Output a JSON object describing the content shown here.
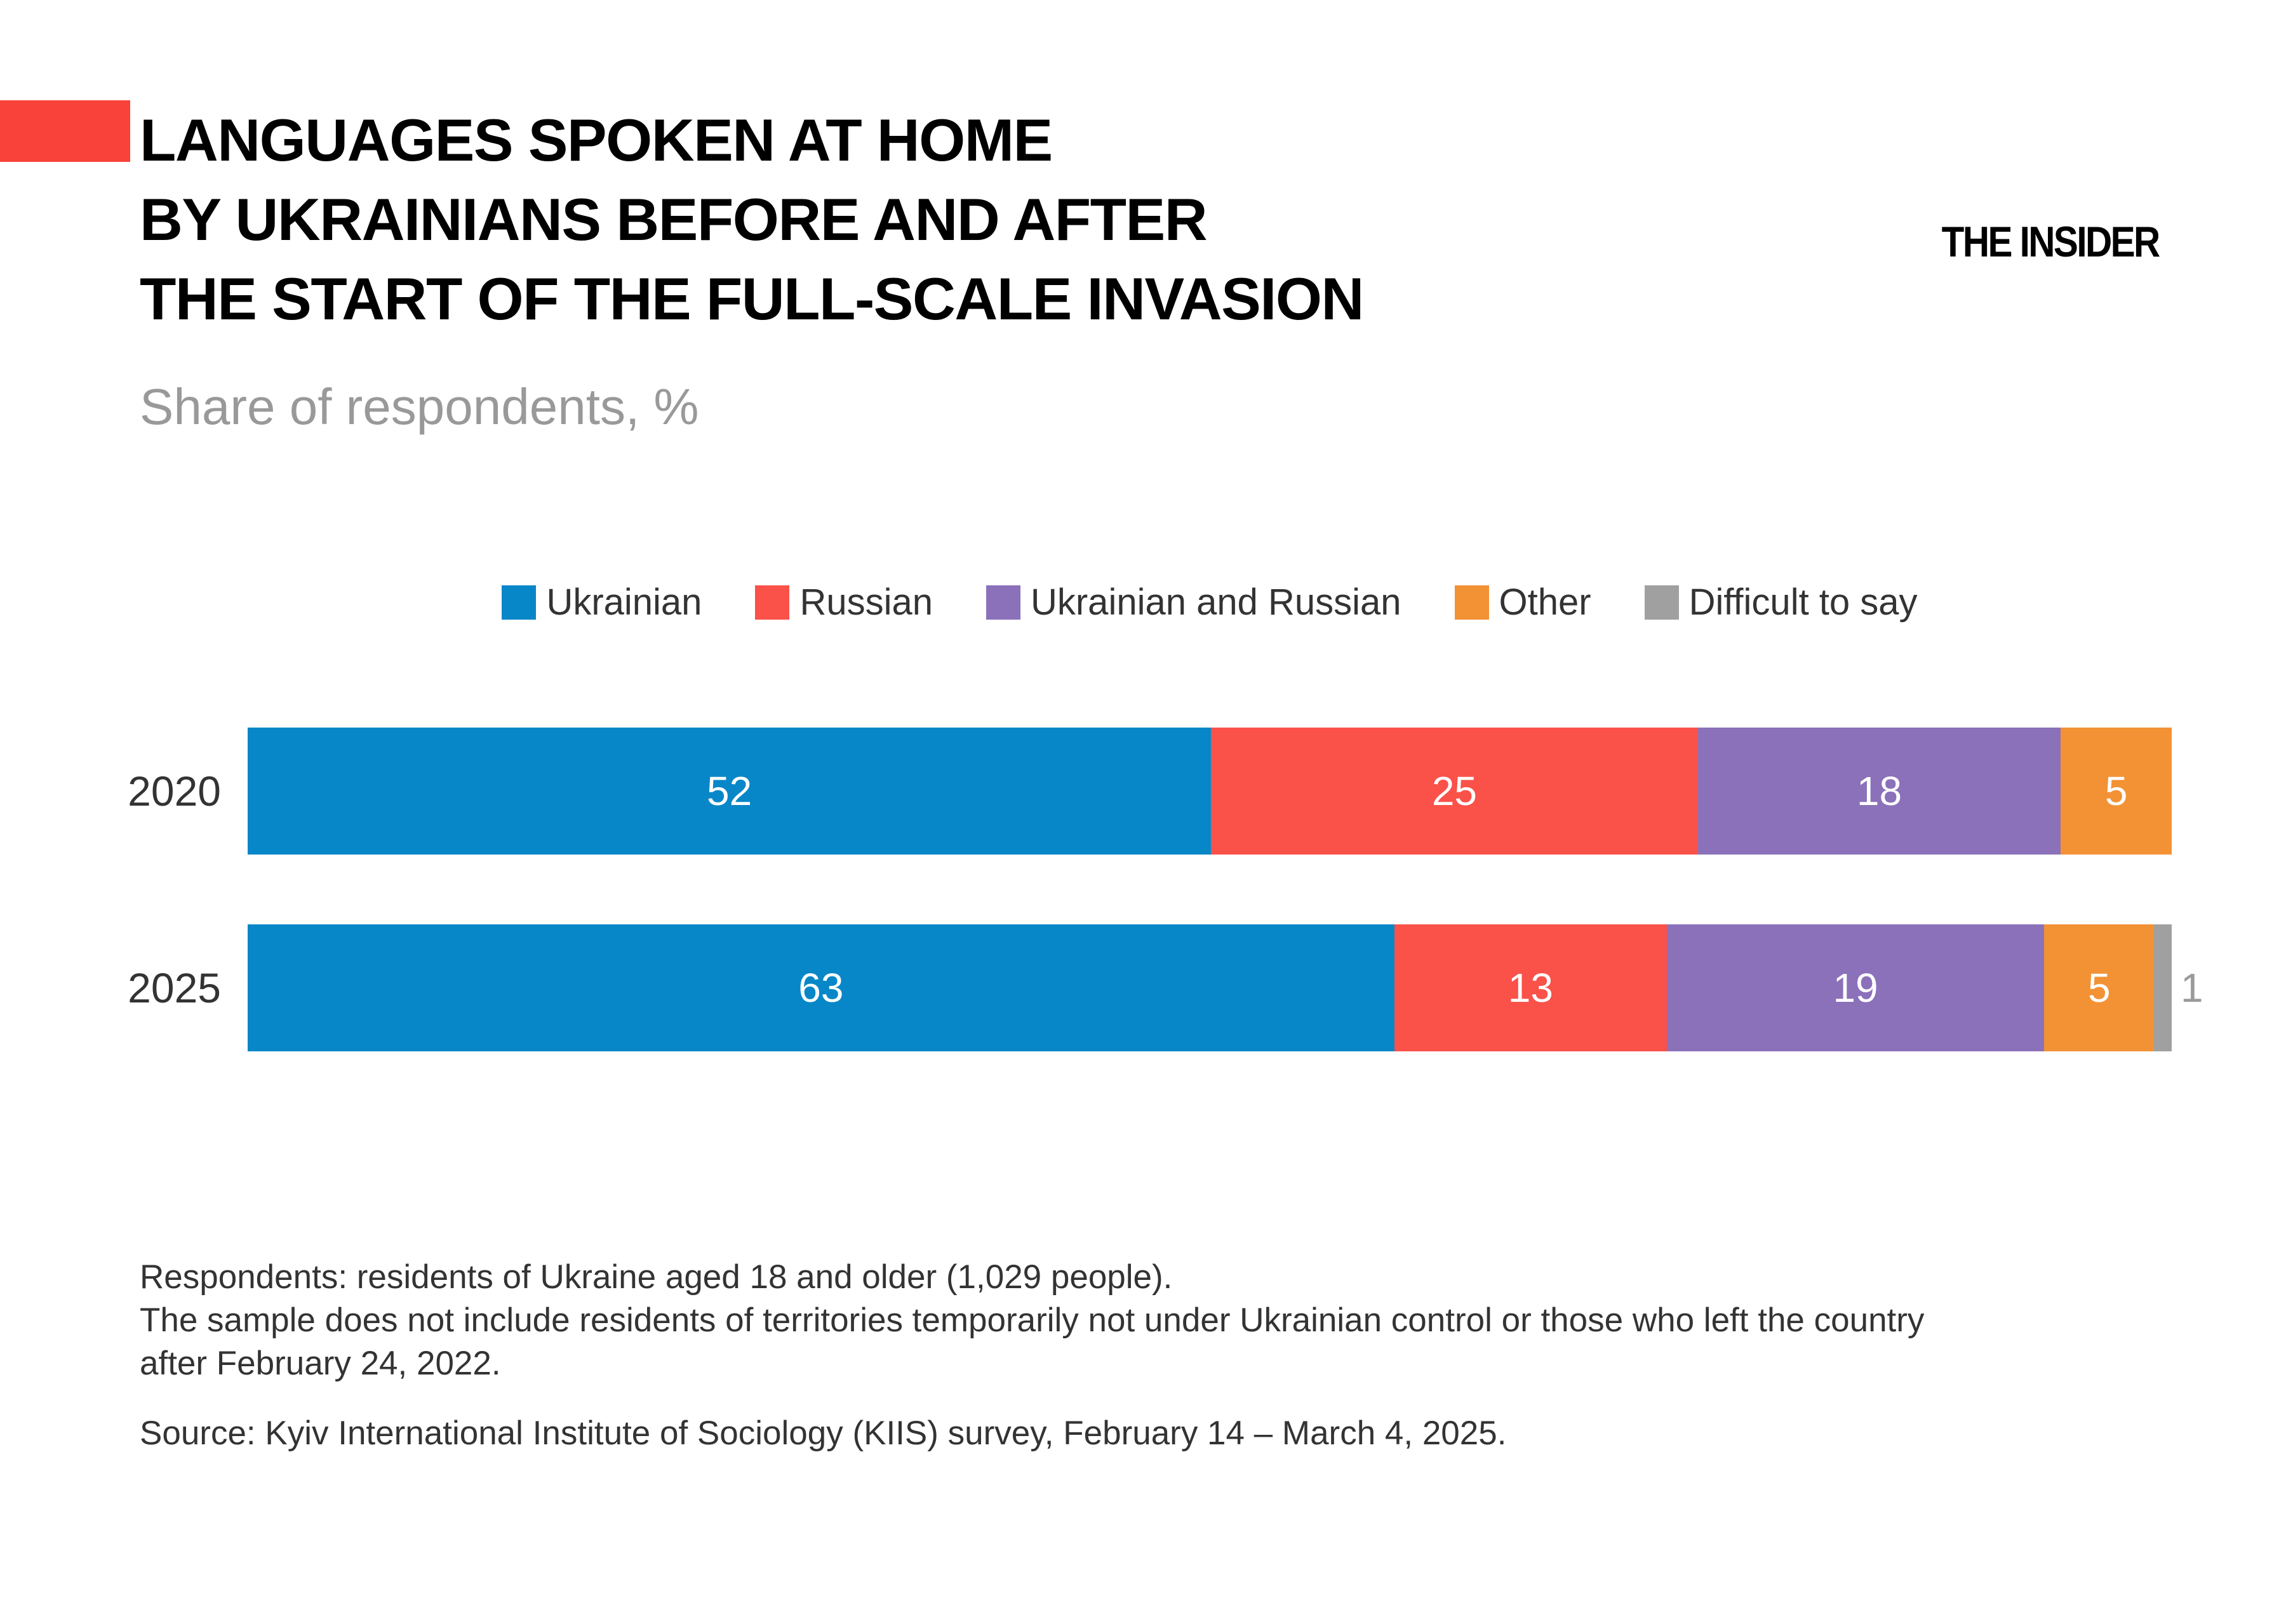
{
  "brand": {
    "logo_text": "THE INSIDER",
    "accent_block_color": "#f9423a"
  },
  "header": {
    "title_lines": [
      "LANGUAGES SPOKEN AT HOME",
      "BY UKRAINIANS BEFORE AND AFTER",
      "THE START OF THE FULL-SCALE INVASION"
    ],
    "subtitle": "Share of respondents, %"
  },
  "chart_data": {
    "type": "bar",
    "subtype": "horizontal_stacked",
    "title": "LANGUAGES SPOKEN AT HOME BY UKRAINIANS BEFORE AND AFTER THE START OF THE FULL-SCALE INVASION",
    "unit": "%",
    "xlim": [
      0,
      100
    ],
    "grid": false,
    "legend_position": "top-center",
    "categories": [
      "2020",
      "2025"
    ],
    "series": [
      {
        "name": "Ukrainian",
        "color": "#0887c8",
        "values": [
          52,
          63
        ]
      },
      {
        "name": "Russian",
        "color": "#fa5149",
        "values": [
          25,
          13
        ]
      },
      {
        "name": "Ukrainian and Russian",
        "color": "#8b70ba",
        "values": [
          18,
          19
        ]
      },
      {
        "name": "Other",
        "color": "#f29235",
        "values": [
          5,
          5
        ]
      },
      {
        "name": "Difficult to say",
        "color": "#a0a0a0",
        "values": [
          0,
          1
        ]
      }
    ],
    "value_label_color": "#ffffff",
    "outside_value_label_color": "#9b9b9b",
    "category_label_color": "#333333"
  },
  "footnotes": {
    "lines": [
      "Respondents: residents of Ukraine aged 18 and older (1,029 people).",
      "The sample does not include residents of territories temporarily not under Ukrainian control or those who left the country",
      "after February 24, 2022."
    ],
    "source": "Source: Kyiv International Institute of Sociology (KIIS) survey, February 14 – March 4, 2025."
  }
}
